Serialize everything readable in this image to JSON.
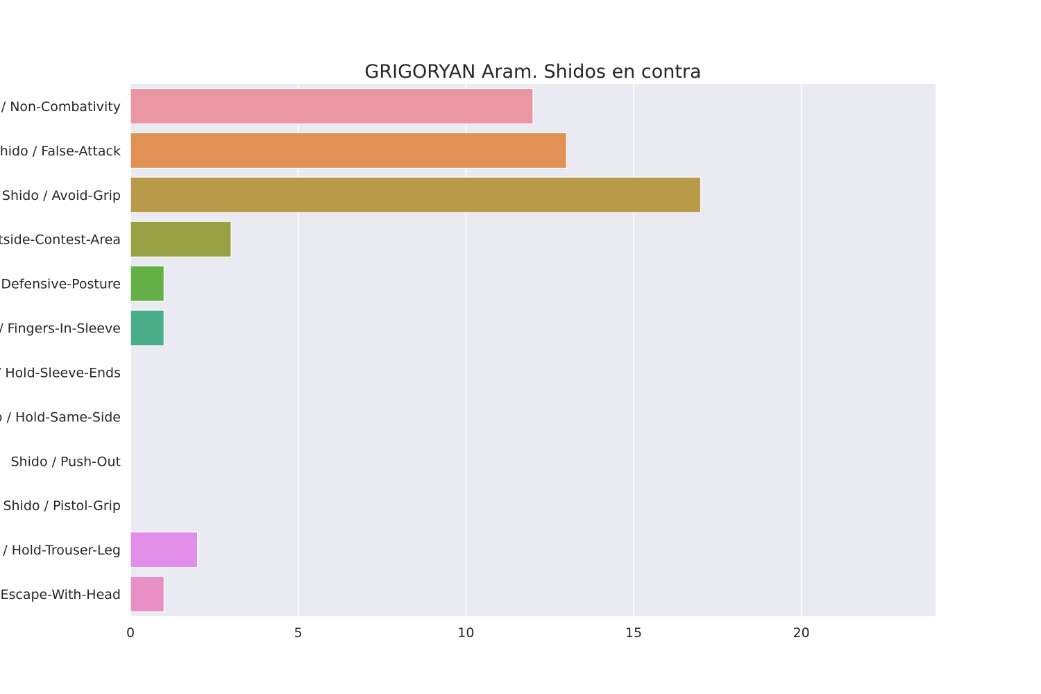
{
  "chart_data": {
    "type": "bar",
    "orientation": "horizontal",
    "title": "GRIGORYAN Aram. Shidos en contra",
    "xlabel": "",
    "ylabel": "",
    "xlim": [
      0,
      24
    ],
    "xticks": [
      0,
      5,
      10,
      15,
      20
    ],
    "grid": true,
    "categories": [
      "Shido / Non-Combativity",
      "Shido / False-Attack",
      "Shido / Avoid-Grip",
      "Shido / Outside-Contest-Area",
      "Shido / Defensive-Posture",
      "Shido / Fingers-In-Sleeve",
      "Shido / Hold-Sleeve-Ends",
      "Shido / Hold-Same-Side",
      "Shido / Push-Out",
      "Shido / Pistol-Grip",
      "Shido / Hold-Trouser-Leg",
      "Shido / Escape-With-Head"
    ],
    "values": [
      12,
      13,
      17,
      3,
      1,
      1,
      0,
      0,
      0,
      0,
      2,
      1
    ],
    "colors": [
      "#ea96a3",
      "#e19153",
      "#b89b49",
      "#99a044",
      "#62b046",
      "#4bae8a",
      "#4fabb1",
      "#51a8d7",
      "#8f9cee",
      "#c48ef0",
      "#e18ee9",
      "#e88fc6"
    ],
    "plot_background": "#eaeaf2",
    "grid_color": "#ffffff"
  }
}
